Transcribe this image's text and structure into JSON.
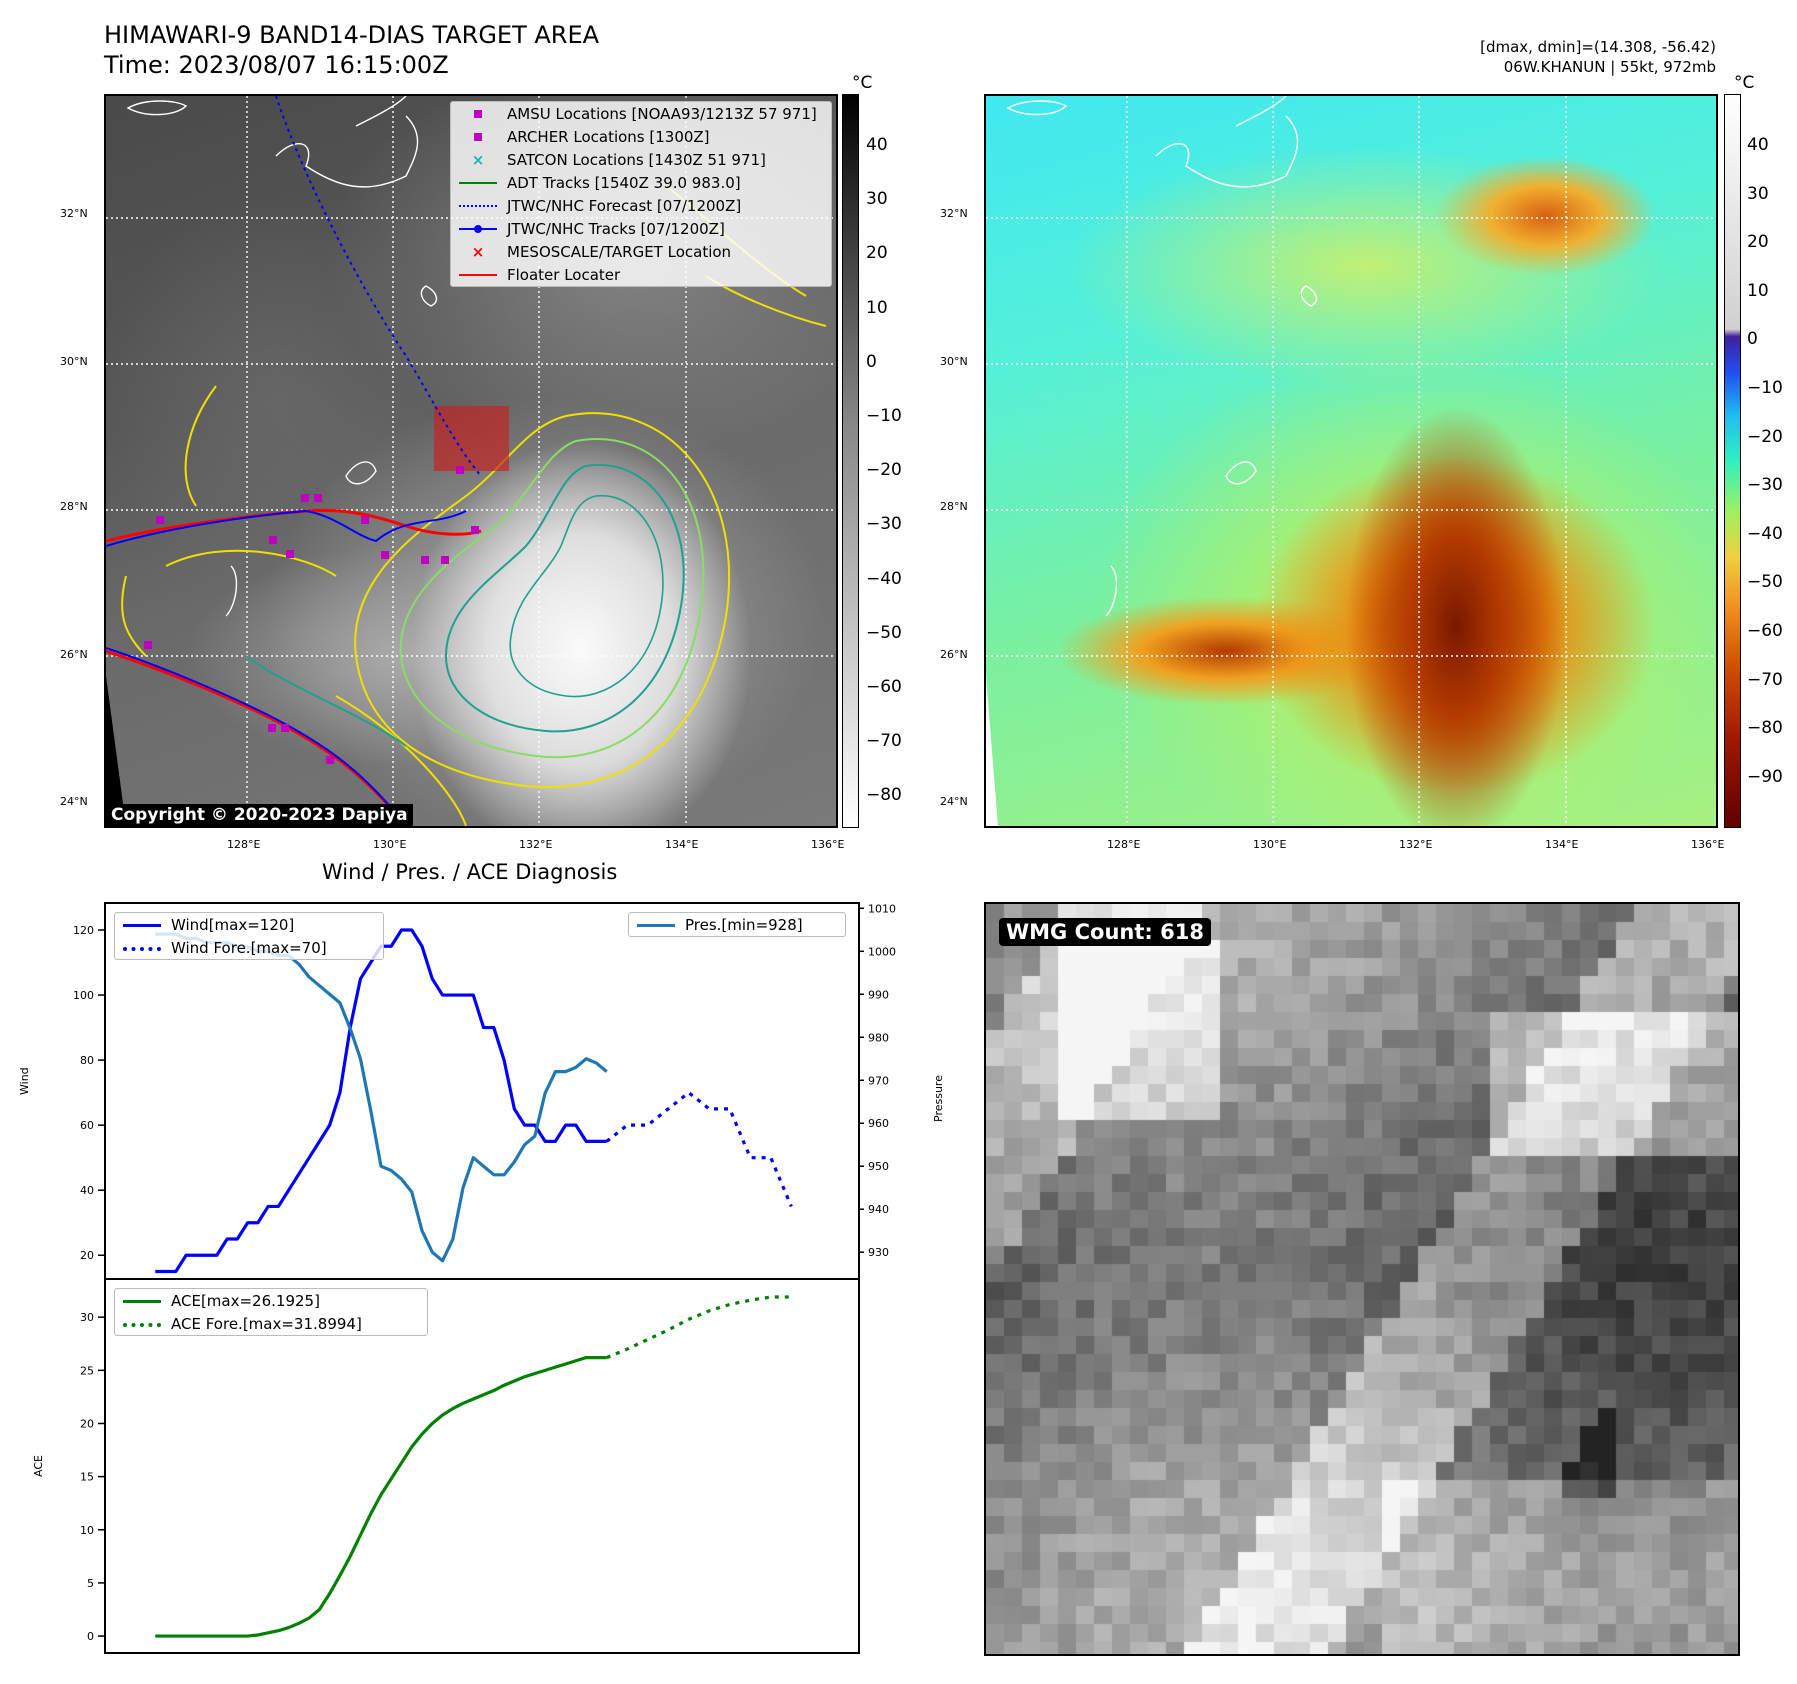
{
  "header": {
    "title_line1": "HIMAWARI-9 BAND14-DIAS TARGET AREA",
    "title_line2": "Time: 2023/08/07 16:15:00Z",
    "right_line1": "[dmax, dmin]=(14.308, -56.42)",
    "right_line2": "06W.KHANUN | 55kt, 972mb",
    "copyright": "Copyright © 2020-2023 Dapiya"
  },
  "map": {
    "lat_labels": [
      "32°N",
      "30°N",
      "28°N",
      "26°N",
      "24°N"
    ],
    "lon_labels": [
      "128°E",
      "130°E",
      "132°E",
      "134°E",
      "136°E"
    ],
    "legend": [
      {
        "label": "AMSU Locations [NOAA93/1213Z 57 971]",
        "color": "#c000c0",
        "marker": "square"
      },
      {
        "label": "ARCHER Locations [1300Z]",
        "color": "#c000c0",
        "marker": "square"
      },
      {
        "label": "SATCON Locations [1430Z 51 971]",
        "color": "#17b6b6",
        "marker": "x"
      },
      {
        "label": "ADT Tracks [1540Z 39.0 983.0]",
        "color": "#008000",
        "marker": "line"
      },
      {
        "label": "JTWC/NHC Forecast [07/1200Z]",
        "color": "#0000ff",
        "marker": "dotted"
      },
      {
        "label": "JTWC/NHC Tracks [07/1200Z]",
        "color": "#0000ff",
        "marker": "line-dot"
      },
      {
        "label": "MESOSCALE/TARGET Location",
        "color": "#ff0000",
        "marker": "x"
      },
      {
        "label": "Floater Locater",
        "color": "#ff0000",
        "marker": "line"
      }
    ]
  },
  "colorbar_gray": {
    "unit": "°C",
    "ticks": [
      "40",
      "30",
      "20",
      "10",
      "0",
      "−10",
      "−20",
      "−30",
      "−40",
      "−50",
      "−60",
      "−70",
      "−80"
    ]
  },
  "colorbar_color": {
    "unit": "°C",
    "ticks": [
      "40",
      "30",
      "20",
      "10",
      "0",
      "−10",
      "−20",
      "−30",
      "−40",
      "−50",
      "−60",
      "−70",
      "−80",
      "−90"
    ]
  },
  "wmg": {
    "label": "WMG Count: 618"
  },
  "chart_data": [
    {
      "type": "line",
      "title": "Wind / Pres. / ACE Diagnosis",
      "ylabel": "Wind",
      "y2label": "Pressure",
      "ylim": [
        13,
        128
      ],
      "y2lim": [
        924,
        1011
      ],
      "yticks": [
        20,
        40,
        60,
        80,
        100,
        120
      ],
      "y2ticks": [
        930,
        940,
        950,
        960,
        970,
        980,
        990,
        1000,
        1010
      ],
      "series": [
        {
          "name": "Wind[max=120]",
          "color": "#0000ff",
          "style": "solid",
          "axis": "left",
          "x": [
            0,
            2,
            4,
            6,
            8,
            10,
            12,
            14,
            16,
            18,
            20,
            22,
            24,
            26,
            28,
            30,
            32,
            34,
            36,
            38,
            40,
            42,
            44,
            46,
            48,
            50,
            52,
            54,
            56,
            58,
            60,
            62,
            64,
            66,
            68,
            70,
            72,
            74,
            76,
            78,
            80,
            82,
            84,
            86,
            88
          ],
          "values": [
            15,
            15,
            15,
            20,
            20,
            20,
            20,
            25,
            25,
            30,
            30,
            35,
            35,
            40,
            45,
            50,
            55,
            60,
            70,
            90,
            105,
            110,
            115,
            115,
            120,
            120,
            115,
            105,
            100,
            100,
            100,
            100,
            90,
            90,
            80,
            65,
            60,
            60,
            55,
            55,
            60,
            60,
            55,
            55,
            55
          ]
        },
        {
          "name": "Wind Fore.[max=70]",
          "color": "#0000ff",
          "style": "dotted",
          "axis": "left",
          "x": [
            88,
            92,
            96,
            100,
            104,
            108,
            112,
            116,
            120,
            124
          ],
          "values": [
            55,
            60,
            60,
            65,
            70,
            65,
            65,
            50,
            50,
            35
          ]
        },
        {
          "name": "Pres.[min=928]",
          "color": "#1f77b4",
          "style": "solid",
          "axis": "right",
          "x": [
            0,
            2,
            4,
            6,
            8,
            10,
            12,
            14,
            16,
            18,
            20,
            22,
            24,
            26,
            28,
            30,
            32,
            34,
            36,
            38,
            40,
            42,
            44,
            46,
            48,
            50,
            52,
            54,
            56,
            58,
            60,
            62,
            64,
            66,
            68,
            70,
            72,
            74,
            76,
            78,
            80,
            82,
            84,
            86,
            88
          ],
          "values": [
            1004,
            1004,
            1004,
            1003,
            1003,
            1002,
            1002,
            1002,
            1001,
            1001,
            1000,
            1000,
            999,
            999,
            997,
            994,
            992,
            990,
            988,
            982,
            975,
            963,
            950,
            949,
            947,
            944,
            935,
            930,
            928,
            933,
            945,
            952,
            950,
            948,
            948,
            951,
            955,
            957,
            967,
            972,
            972,
            973,
            975,
            974,
            972
          ]
        }
      ]
    },
    {
      "type": "line",
      "ylabel": "ACE",
      "ylim": [
        -1.5,
        33.5
      ],
      "yticks": [
        0,
        5,
        10,
        15,
        20,
        25,
        30
      ],
      "series": [
        {
          "name": "ACE[max=26.1925]",
          "color": "#008000",
          "style": "solid",
          "x": [
            0,
            5,
            10,
            15,
            18,
            20,
            22,
            24,
            26,
            28,
            30,
            32,
            34,
            36,
            38,
            40,
            42,
            44,
            46,
            48,
            50,
            52,
            54,
            56,
            58,
            60,
            62,
            64,
            66,
            68,
            70,
            72,
            74,
            76,
            78,
            80,
            82,
            84,
            86,
            88
          ],
          "values": [
            0,
            0,
            0,
            0,
            0,
            0.1,
            0.3,
            0.5,
            0.8,
            1.2,
            1.7,
            2.5,
            4,
            5.7,
            7.5,
            9.5,
            11.5,
            13.3,
            14.8,
            16.3,
            17.8,
            19,
            20,
            20.8,
            21.4,
            21.9,
            22.3,
            22.7,
            23.1,
            23.6,
            24,
            24.4,
            24.7,
            25,
            25.3,
            25.6,
            25.9,
            26.2,
            26.2,
            26.2
          ]
        },
        {
          "name": "ACE Fore.[max=31.8994]",
          "color": "#008000",
          "style": "dotted",
          "x": [
            88,
            92,
            96,
            100,
            104,
            108,
            112,
            116,
            120,
            124
          ],
          "values": [
            26.2,
            27,
            27.9,
            28.8,
            29.8,
            30.6,
            31.2,
            31.6,
            31.9,
            31.9
          ]
        }
      ]
    }
  ]
}
